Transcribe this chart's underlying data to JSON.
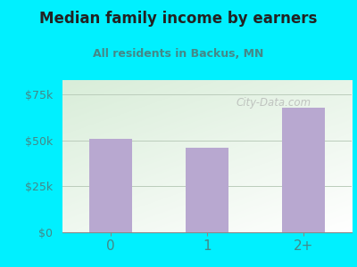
{
  "title": "Median family income by earners",
  "subtitle": "All residents in Backus, MN",
  "categories": [
    "0",
    "1",
    "2+"
  ],
  "values": [
    51000,
    46000,
    68000
  ],
  "bar_color": "#b8a8d0",
  "background_outer": "#00f0ff",
  "gradient_top_left": "#d8eed8",
  "gradient_bottom_right": "#ffffff",
  "title_color": "#222222",
  "subtitle_color": "#448888",
  "tick_label_color": "#448888",
  "yticks": [
    0,
    25000,
    50000,
    75000
  ],
  "ytick_labels": [
    "$0",
    "$25k",
    "$50k",
    "$75k"
  ],
  "ylim": [
    0,
    83000
  ],
  "watermark": "City-Data.com",
  "watermark_color": "#aaaaaa"
}
